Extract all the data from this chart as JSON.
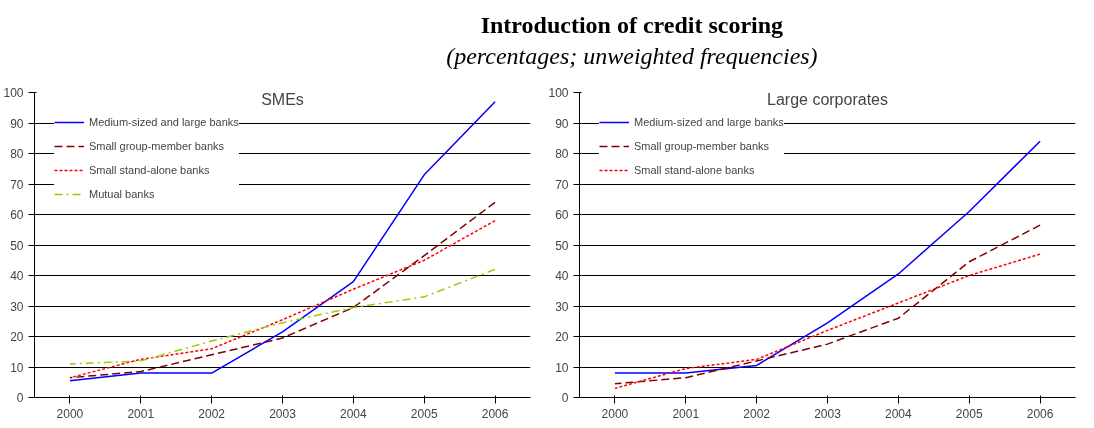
{
  "chart_data": [
    {
      "type": "line",
      "annotations": [
        "SMEs"
      ],
      "categories": [
        "2000",
        "2001",
        "2002",
        "2003",
        "2004",
        "2005",
        "2006"
      ],
      "series": [
        {
          "name": "Medium-sized and large banks",
          "color": "#0000ff",
          "line_style": "solid",
          "values": [
            5.5,
            8,
            8,
            21.5,
            38,
            73,
            97
          ]
        },
        {
          "name": "Small group-member banks",
          "color": "#800000",
          "line_style": "dashed",
          "values": [
            6.5,
            8.5,
            14,
            19.5,
            29.5,
            46.5,
            64
          ]
        },
        {
          "name": "Small stand-alone banks",
          "color": "#ff0000",
          "line_style": "dotted",
          "values": [
            6.5,
            12.5,
            16,
            25.5,
            35.5,
            45,
            58
          ]
        },
        {
          "name": "Mutual banks",
          "color": "#99cc00",
          "line_style": "dashdot",
          "values": [
            11,
            12,
            18.5,
            24.5,
            29.5,
            33,
            42
          ]
        }
      ],
      "ylim": [
        0,
        100
      ],
      "yticks": [
        0,
        10,
        20,
        30,
        40,
        50,
        60,
        70,
        80,
        90,
        100
      ],
      "grid": "y",
      "legend": "top left",
      "marker": "none"
    },
    {
      "type": "line",
      "title": "Introduction of credit scoring",
      "subtitle": "(percentages; unweighted frequencies)",
      "annotations": [
        "Large corporates"
      ],
      "categories": [
        "2000",
        "2001",
        "2002",
        "2003",
        "2004",
        "2005",
        "2006"
      ],
      "series": [
        {
          "name": "Medium-sized and large banks",
          "color": "#0000ff",
          "line_style": "solid",
          "values": [
            8,
            8,
            10.5,
            24.5,
            40.5,
            61,
            84
          ]
        },
        {
          "name": "Small group-member banks",
          "color": "#800000",
          "line_style": "dashed",
          "values": [
            4.5,
            6.5,
            12,
            17.5,
            26,
            44.5,
            56.5
          ]
        },
        {
          "name": "Small stand-alone banks",
          "color": "#ff0000",
          "line_style": "dotted",
          "values": [
            3,
            9.5,
            12.5,
            22,
            31,
            40,
            47
          ]
        }
      ],
      "ylim": [
        0,
        100
      ],
      "yticks": [
        0,
        10,
        20,
        30,
        40,
        50,
        60,
        70,
        80,
        90,
        100
      ],
      "grid": "y",
      "legend": "top left",
      "marker": "none"
    }
  ]
}
